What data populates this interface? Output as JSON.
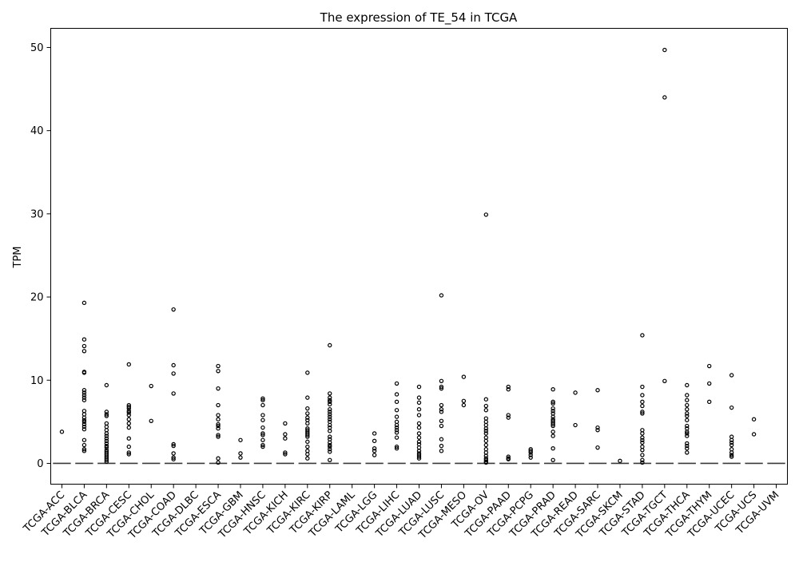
{
  "chart_data": {
    "type": "boxplot",
    "title": "The expression of TE_54 in TCGA",
    "xlabel": "",
    "ylabel": "TPM",
    "ylim": [
      -2.5,
      52.3
    ],
    "yticks": [
      0,
      10,
      20,
      30,
      40,
      50
    ],
    "grid": false,
    "legend": "none",
    "categories": [
      "TCGA-ACC",
      "TCGA-BLCA",
      "TCGA-BRCA",
      "TCGA-CESC",
      "TCGA-CHOL",
      "TCGA-COAD",
      "TCGA-DLBC",
      "TCGA-ESCA",
      "TCGA-GBM",
      "TCGA-HNSC",
      "TCGA-KICH",
      "TCGA-KIRC",
      "TCGA-KIRP",
      "TCGA-LAML",
      "TCGA-LGG",
      "TCGA-LIHC",
      "TCGA-LUAD",
      "TCGA-LUSC",
      "TCGA-MESO",
      "TCGA-OV",
      "TCGA-PAAD",
      "TCGA-PCPG",
      "TCGA-PRAD",
      "TCGA-READ",
      "TCGA-SARC",
      "TCGA-SKCM",
      "TCGA-STAD",
      "TCGA-TGCT",
      "TCGA-THCA",
      "TCGA-THYM",
      "TCGA-UCEC",
      "TCGA-UCS",
      "TCGA-UVM"
    ],
    "median": 0,
    "outliers": [
      [
        3.8
      ],
      [
        19.3,
        14.9,
        14.1,
        13.5,
        11.0,
        10.9,
        8.8,
        8.5,
        8.2,
        7.9,
        7.6,
        6.3,
        5.9,
        5.5,
        5.2,
        5.0,
        4.7,
        4.4,
        4.1,
        2.8,
        2.2,
        1.7,
        1.5
      ],
      [
        9.4,
        6.2,
        5.9,
        5.7,
        4.8,
        4.4,
        4.0,
        3.6,
        3.3,
        3.0,
        2.7,
        2.4,
        2.1,
        1.9,
        1.6,
        1.4,
        1.2,
        1.0,
        0.8,
        0.6,
        0.4,
        0.2
      ],
      [
        11.9,
        7.0,
        6.8,
        6.6,
        6.3,
        6.1,
        5.8,
        5.3,
        4.8,
        4.3,
        3.0,
        2.0,
        1.3,
        1.1
      ],
      [
        9.3,
        5.1
      ],
      [
        18.5,
        11.8,
        10.8,
        8.4,
        2.3,
        2.1,
        1.2,
        0.7,
        0.5
      ],
      [],
      [
        11.7,
        11.1,
        9.0,
        7.0,
        5.8,
        5.3,
        4.7,
        4.5,
        4.2,
        3.4,
        3.2,
        0.6,
        0.1
      ],
      [
        2.8,
        1.2,
        0.7
      ],
      [
        7.8,
        7.6,
        7.0,
        5.8,
        5.2,
        4.3,
        3.6,
        3.4,
        2.8,
        2.2,
        2.0
      ],
      [
        4.8,
        3.5,
        3.0,
        1.3,
        1.1
      ],
      [
        10.9,
        7.9,
        6.6,
        6.0,
        5.5,
        5.2,
        4.8,
        4.2,
        4.0,
        3.8,
        3.6,
        3.4,
        3.2,
        2.6,
        2.0,
        1.5,
        1.1,
        0.6
      ],
      [
        14.2,
        8.4,
        7.9,
        7.6,
        7.4,
        7.1,
        6.5,
        6.2,
        5.9,
        5.6,
        5.3,
        5.0,
        4.6,
        4.3,
        3.9,
        3.2,
        2.9,
        2.5,
        2.2,
        2.0,
        1.7,
        1.4,
        0.4
      ],
      [],
      [
        3.6,
        2.7,
        1.8,
        1.5,
        1.0
      ],
      [
        9.6,
        8.3,
        7.4,
        6.4,
        5.6,
        5.0,
        4.6,
        4.3,
        4.0,
        3.7,
        3.1,
        2.0,
        1.8
      ],
      [
        9.2,
        7.9,
        7.3,
        6.5,
        5.8,
        4.8,
        4.3,
        3.6,
        3.1,
        2.6,
        2.3,
        1.9,
        1.5,
        1.2,
        1.0,
        0.8,
        0.6
      ],
      [
        20.2,
        9.9,
        9.2,
        9.0,
        7.0,
        6.5,
        6.2,
        5.1,
        4.5,
        2.9,
        2.1,
        1.5
      ],
      [
        10.4,
        7.5,
        7.0
      ],
      [
        29.9,
        7.7,
        6.9,
        6.4,
        5.4,
        5.0,
        4.6,
        4.2,
        3.9,
        3.6,
        3.1,
        2.7,
        2.2,
        1.7,
        1.3,
        0.9,
        0.6,
        0.4,
        0.2,
        0.1
      ],
      [
        9.2,
        8.9,
        5.8,
        5.5,
        0.8,
        0.6,
        0.5
      ],
      [
        1.7,
        1.5,
        1.3,
        1.0,
        0.7
      ],
      [
        8.9,
        7.4,
        7.2,
        6.6,
        6.3,
        6.0,
        5.6,
        5.3,
        5.1,
        4.9,
        4.7,
        4.5,
        3.8,
        3.3,
        1.8,
        0.4
      ],
      [
        8.5,
        4.6
      ],
      [
        8.8,
        4.3,
        4.0,
        1.9
      ],
      [
        0.3
      ],
      [
        15.4,
        9.2,
        8.2,
        7.4,
        6.9,
        6.2,
        6.0,
        4.0,
        3.6,
        3.1,
        2.8,
        2.5,
        2.0,
        1.6,
        1.0,
        0.4,
        0.1
      ],
      [
        49.7,
        44.0,
        9.9
      ],
      [
        9.4,
        8.2,
        7.6,
        7.0,
        6.5,
        6.0,
        5.7,
        5.2,
        4.5,
        4.2,
        3.8,
        3.6,
        3.3,
        2.4,
        2.1,
        1.8,
        1.3
      ],
      [
        11.7,
        9.6,
        7.4
      ],
      [
        10.6,
        6.7,
        3.2,
        2.8,
        2.5,
        2.2,
        1.7,
        1.3,
        1.0,
        0.8
      ],
      [
        5.3,
        3.5
      ],
      []
    ]
  }
}
